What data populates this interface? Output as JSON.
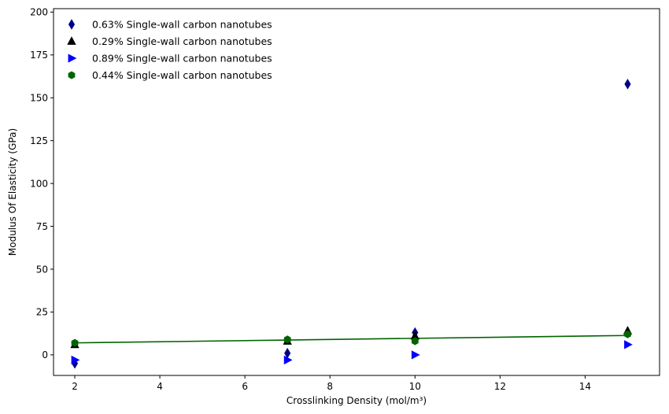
{
  "chart_data": {
    "type": "scatter",
    "xlabel": "Crosslinking Density (mol/m³)",
    "ylabel": "Modulus Of Elasticity (GPa)",
    "xlim": [
      1.5,
      15.75
    ],
    "ylim": [
      -12,
      202
    ],
    "xticks": [
      2,
      4,
      6,
      8,
      10,
      12,
      14
    ],
    "yticks": [
      0,
      25,
      50,
      75,
      100,
      125,
      150,
      175,
      200
    ],
    "grid": false,
    "legend_position": "top-left",
    "series": [
      {
        "name": "0.63% Single-wall carbon nanotubes",
        "marker": "thin-diamond",
        "color": "#00008b",
        "x": [
          2,
          7,
          10,
          15
        ],
        "y": [
          -5,
          1,
          13,
          158
        ]
      },
      {
        "name": "0.29% Single-wall carbon nanotubes",
        "marker": "triangle-up",
        "color": "#000000",
        "x": [
          2,
          7,
          10,
          15
        ],
        "y": [
          6,
          8,
          11,
          14
        ]
      },
      {
        "name": "0.89% Single-wall carbon nanotubes",
        "marker": "triangle-right",
        "color": "#0000ff",
        "x": [
          2,
          7,
          10,
          15
        ],
        "y": [
          -3,
          -3,
          0,
          6
        ]
      },
      {
        "name": "0.44% Single-wall carbon nanotubes",
        "marker": "hexagon",
        "color": "#006400",
        "x": [
          2,
          7,
          10,
          15
        ],
        "y": [
          7,
          9,
          8,
          12
        ]
      }
    ],
    "trend_line": {
      "color": "#006400",
      "x": [
        2,
        15
      ],
      "y": [
        7,
        11.3
      ]
    }
  }
}
